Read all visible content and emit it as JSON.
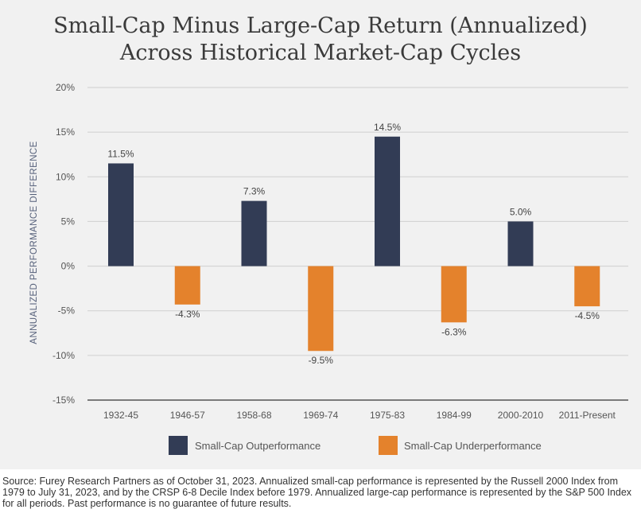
{
  "title_line1": "Small-Cap Minus Large-Cap Return (Annualized)",
  "title_line2": "Across Historical Market-Cap Cycles",
  "source_text": "Source: Furey Research Partners as of October 31, 2023. Annualized small-cap performance is represented by the Russell 2000 Index from 1979 to July 31, 2023, and by the CRSP 6-8 Decile Index before 1979. Annualized large-cap performance is represented by the S&P 500 Index for all periods. Past performance is no guarantee of future results.",
  "colors": {
    "outperformance": "#323c55",
    "underperformance": "#e4822c"
  },
  "chart_data": {
    "type": "bar",
    "title": "Small-Cap Minus Large-Cap Return (Annualized) Across Historical Market-Cap Cycles",
    "ylabel": "ANNUALIZED PERFORMANCE DIFFERENCE",
    "xlabel": "",
    "ylim": [
      -15,
      20
    ],
    "yticks": [
      20,
      15,
      10,
      5,
      0,
      -5,
      -10,
      -15
    ],
    "ytick_labels": [
      "20%",
      "15%",
      "10%",
      "5%",
      "0%",
      "-5%",
      "-10%",
      "-15%"
    ],
    "grid": true,
    "legend_position": "bottom",
    "categories": [
      "1932-45",
      "1946-57",
      "1958-68",
      "1969-74",
      "1975-83",
      "1984-99",
      "2000-2010",
      "2011-Present"
    ],
    "values": [
      11.5,
      -4.3,
      7.3,
      -9.5,
      14.5,
      -6.3,
      5.0,
      -4.5
    ],
    "value_labels": [
      "11.5%",
      "-4.3%",
      "7.3%",
      "-9.5%",
      "14.5%",
      "-6.3%",
      "5.0%",
      "-4.5%"
    ],
    "legend": [
      "Small-Cap Outperformance",
      "Small-Cap Underperformance"
    ]
  }
}
